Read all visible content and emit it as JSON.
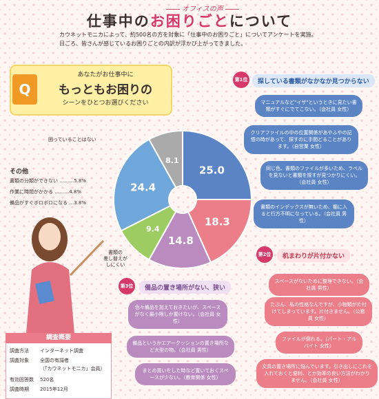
{
  "header": {
    "voice": "オフィスの声",
    "title_a": "仕事中の",
    "title_b": "お困りごと",
    "title_c": "について",
    "lead1": "カウネットモニカによって、約500名の方を対象に「仕事中のお困りごと」についてアンケートを実施。",
    "lead2": "日ごろ、皆さんが感じているお困りごとの内訳が浮かび上がってきました。"
  },
  "question": {
    "mark": "Q",
    "line1": "あなたがお仕事中に",
    "line2": "もっともお困りの",
    "line3": "シーンをひとつお選びください"
  },
  "chart_data": {
    "type": "pie",
    "unit": "%",
    "slices": [
      {
        "label": "探している書類がなかなか見つからない",
        "value": 25.0,
        "text": "25.0",
        "color": "#5b84c4"
      },
      {
        "label": "机まわりが片付かない",
        "value": 18.3,
        "text": "18.3",
        "color": "#ec7e8a"
      },
      {
        "label": "備品の置き場所がない、狭い",
        "value": 14.8,
        "text": "14.8",
        "color": "#b98bbf"
      },
      {
        "label": "書類の差し替えがしにくい",
        "value": 9.4,
        "text": "9.4",
        "color": "#9ccc62"
      },
      {
        "label": "その他",
        "value": 24.4,
        "text": "24.4",
        "color": "#6fa7da"
      },
      {
        "label": "困っていることはない",
        "value": 8.1,
        "text": "8.1",
        "color": "#aaaaaa"
      }
    ]
  },
  "labels": {
    "none": "困っていることはない",
    "swap1": "書類の",
    "swap2": "差し替えが",
    "swap3": "しにくい"
  },
  "other": {
    "title": "その他",
    "items": [
      "書類の分類ができない ………5.8%",
      "作業に時間がかかる ………4.8%",
      "備品がすぐボロボロになる …3.8%"
    ]
  },
  "rank1": {
    "tag": "第1位",
    "head": "探している書類がなかなか見つからない",
    "comments": [
      "マニュアルなど\"イザ\"というときに見たい書類がすぐにでてこない。（会社員 女性）",
      "クリアファイルの中の位置関係があやふやの記憶の時があって、探すのに手間どることがあります。（自営業 女性）",
      "同じ色、書類のファイルが多いため、ラベルを見ないと書類を探すが見つかりにくい。（会社員 女性）",
      "書類のインデックスが無いため、棚に入ると行方不明になっている。（会社員 男性）"
    ]
  },
  "rank2": {
    "tag": "第2位",
    "head": "机まわりが片付かない",
    "comments": [
      "スペースがないために整理できない。（会社員 男性）",
      "たぶん、私の性格なんですが、小物類が片付けてしまっています。片付きません。（公務員 女性）",
      "ファイルが倒れる。（パート・アルバイト 女性）",
      "文具の置き場所に悩んでいます。引き出しにこれを入れておくと便利、とか効率の良い方法がわかりません。（会社員 女性）"
    ]
  },
  "rank3": {
    "tag": "第3位",
    "head": "備品の置き場所がない、狭い",
    "comments": [
      "色々備品を加えておきたいが、スペースがなく最小限しか置けない。（会社員 女性）",
      "備品というかエアークッションの置き場所など大型の物。（会社員 男性）",
      "まとめ買いをした時など置いておくスペースが少ない。（教育関係 女性）"
    ]
  },
  "survey": {
    "head": "調査概要",
    "rows": [
      {
        "k": "調査方法",
        "v": "インターネット調査"
      },
      {
        "k": "調査対象",
        "v": "全国の有識者"
      },
      {
        "k": "",
        "v": "（「カウネットモニカ」会員）"
      },
      {
        "k": "有効回答数",
        "v": "520名"
      },
      {
        "k": "調査時期",
        "v": "2015年12月"
      }
    ]
  }
}
